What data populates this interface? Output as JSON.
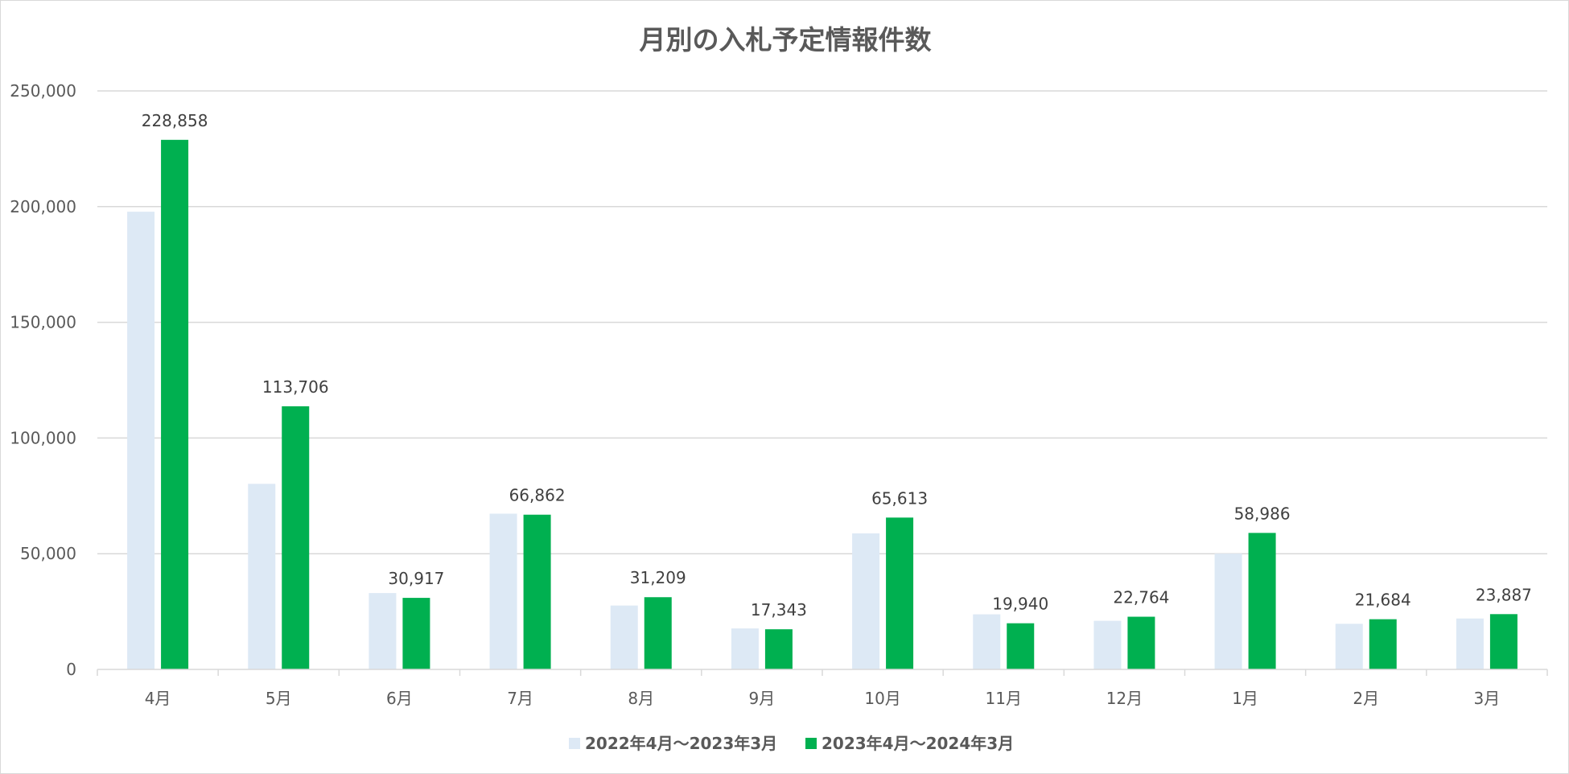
{
  "chart_data": {
    "type": "bar",
    "title": "月別の入札予定情報件数",
    "xlabel": "",
    "ylabel": "",
    "categories": [
      "4月",
      "5月",
      "6月",
      "7月",
      "8月",
      "9月",
      "10月",
      "11月",
      "12月",
      "1月",
      "2月",
      "3月"
    ],
    "series": [
      {
        "name": "2022年4月～2023年3月",
        "color": "#dde9f5",
        "values": [
          197800,
          80200,
          33000,
          67300,
          27600,
          17700,
          58800,
          23800,
          21000,
          50000,
          19700,
          22000
        ],
        "show_labels": false
      },
      {
        "name": "2023年4月～2024年3月",
        "color": "#00b050",
        "values": [
          228858,
          113706,
          30917,
          66862,
          31209,
          17343,
          65613,
          19940,
          22764,
          58986,
          21684,
          23887
        ],
        "data_labels": [
          "228,858",
          "113,706",
          "30,917",
          "66,862",
          "31,209",
          "17,343",
          "65,613",
          "19,940",
          "22,764",
          "58,986",
          "21,684",
          "23,887"
        ],
        "show_labels": true
      }
    ],
    "ylim": [
      0,
      250000
    ],
    "yticks": [
      "0",
      "50,000",
      "100,000",
      "150,000",
      "200,000",
      "250,000"
    ],
    "ytick_values": [
      0,
      50000,
      100000,
      150000,
      200000,
      250000
    ],
    "grid": true,
    "legend_position": "bottom"
  }
}
